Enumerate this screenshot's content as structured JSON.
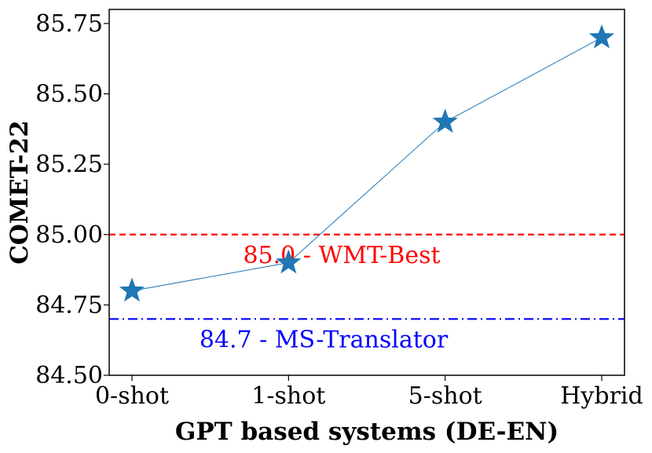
{
  "chart_data": {
    "type": "line",
    "categories": [
      "0-shot",
      "1-shot",
      "5-shot",
      "Hybrid"
    ],
    "series": [
      {
        "values": [
          84.8,
          84.9,
          85.4,
          85.7
        ],
        "color": "#1f77b4",
        "marker": "star"
      }
    ],
    "reference_lines": [
      {
        "value": 85.0,
        "label": "85.0 - WMT-Best",
        "color": "#ff0000",
        "style": "dashed"
      },
      {
        "value": 84.7,
        "label": "84.7 - MS-Translator",
        "color": "#0000ff",
        "style": "dash-dot"
      }
    ],
    "xlabel": "GPT based systems (DE-EN)",
    "ylabel": "COMET-22",
    "ylim": [
      84.5,
      85.8
    ],
    "yticks": [
      84.5,
      84.75,
      85.0,
      85.25,
      85.5,
      85.75
    ],
    "ytick_labels": [
      "84.50",
      "84.75",
      "85.00",
      "85.25",
      "85.50",
      "85.75"
    ],
    "grid": false
  }
}
